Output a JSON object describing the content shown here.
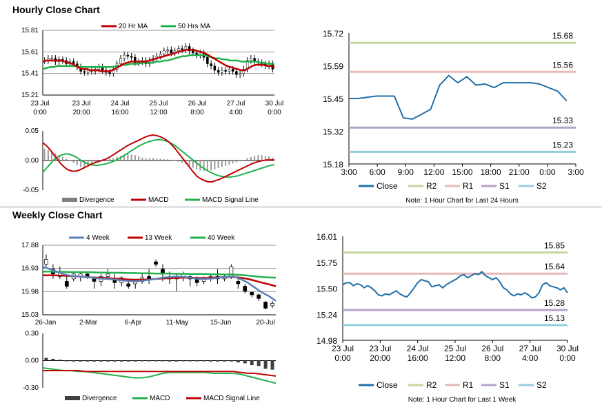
{
  "hourly": {
    "title": "Hourly Close Chart",
    "note": "Note: 1 Hour Chart for Last 24 Hours"
  },
  "weekly": {
    "title": "Weekly Close Chart",
    "note": "Note: 1 Hour Chart for Last 1 Week"
  },
  "colors": {
    "red": "#c00000",
    "green": "#21b14c",
    "blue": "#5b7fb8",
    "close": "#1f6fa6",
    "r2": "#c3d69b",
    "r1": "#e6b9b8",
    "s1": "#b3a2c7",
    "s2": "#93cddd",
    "gray": "#808080",
    "dark": "#404040"
  },
  "chart_data": [
    {
      "id": "hourly-price",
      "type": "candlestick",
      "title": "",
      "legend": [
        "20 Hr MA",
        "50 Hrs MA"
      ],
      "legend_position": "top",
      "ylim": [
        15.21,
        15.81
      ],
      "yticks": [
        "15.81",
        "15.61",
        "15.41",
        "15.21"
      ],
      "xticks": [
        [
          "23 Jul",
          "0:00"
        ],
        [
          "23 Jul",
          "20:00"
        ],
        [
          "24 Jul",
          "16:00"
        ],
        [
          "25 Jul",
          "12:00"
        ],
        [
          "26 Jul",
          "8:00"
        ],
        [
          "27 Jul",
          "4:00"
        ],
        [
          "30 Jul",
          "0:00"
        ]
      ],
      "close": [
        15.53,
        15.55,
        15.55,
        15.52,
        15.54,
        15.53,
        15.5,
        15.52,
        15.5,
        15.47,
        15.43,
        15.42,
        15.44,
        15.43,
        15.45,
        15.47,
        15.44,
        15.42,
        15.41,
        15.45,
        15.5,
        15.55,
        15.58,
        15.57,
        15.56,
        15.51,
        15.52,
        15.53,
        15.5,
        15.53,
        15.55,
        15.57,
        15.59,
        15.62,
        15.63,
        15.6,
        15.62,
        15.64,
        15.63,
        15.66,
        15.62,
        15.6,
        15.58,
        15.6,
        15.56,
        15.5,
        15.48,
        15.44,
        15.42,
        15.44,
        15.43,
        15.45,
        15.43,
        15.4,
        15.41,
        15.45,
        15.53,
        15.55,
        15.52,
        15.51,
        15.5,
        15.48,
        15.5,
        15.45
      ],
      "ma20": [
        15.52,
        15.53,
        15.53,
        15.53,
        15.53,
        15.53,
        15.52,
        15.51,
        15.5,
        15.48,
        15.46,
        15.45,
        15.45,
        15.44,
        15.44,
        15.44,
        15.43,
        15.43,
        15.43,
        15.44,
        15.46,
        15.48,
        15.5,
        15.51,
        15.52,
        15.52,
        15.52,
        15.52,
        15.52,
        15.53,
        15.54,
        15.55,
        15.56,
        15.57,
        15.58,
        15.59,
        15.6,
        15.61,
        15.62,
        15.63,
        15.63,
        15.63,
        15.62,
        15.61,
        15.6,
        15.58,
        15.56,
        15.54,
        15.52,
        15.5,
        15.48,
        15.47,
        15.46,
        15.45,
        15.44,
        15.44,
        15.46,
        15.48,
        15.49,
        15.49,
        15.49,
        15.48,
        15.48,
        15.47
      ],
      "ma50": [
        15.45,
        15.46,
        15.47,
        15.47,
        15.48,
        15.48,
        15.48,
        15.48,
        15.48,
        15.48,
        15.47,
        15.47,
        15.47,
        15.47,
        15.47,
        15.47,
        15.47,
        15.47,
        15.47,
        15.47,
        15.48,
        15.48,
        15.49,
        15.49,
        15.5,
        15.5,
        15.5,
        15.51,
        15.51,
        15.51,
        15.51,
        15.52,
        15.52,
        15.53,
        15.53,
        15.54,
        15.55,
        15.56,
        15.57,
        15.57,
        15.58,
        15.58,
        15.58,
        15.58,
        15.58,
        15.57,
        15.56,
        15.55,
        15.55,
        15.54,
        15.54,
        15.53,
        15.53,
        15.53,
        15.52,
        15.52,
        15.52,
        15.52,
        15.52,
        15.51,
        15.51,
        15.5,
        15.5,
        15.5
      ]
    },
    {
      "id": "hourly-macd",
      "type": "bar+line",
      "legend": [
        "Divergence",
        "MACD",
        "MACD Signal Line"
      ],
      "legend_position": "bottom",
      "ylim": [
        -0.05,
        0.05
      ],
      "yticks": [
        "0.05",
        "0.00",
        "-0.05"
      ],
      "divergence": [
        0.02,
        0.018,
        0.015,
        0.012,
        0.009,
        0.006,
        0.003,
        0,
        -0.004,
        -0.008,
        -0.011,
        -0.012,
        -0.01,
        -0.008,
        -0.005,
        -0.003,
        -0.001,
        0.001,
        0.003,
        0.004,
        0.006,
        0.008,
        0.01,
        0.011,
        0.01,
        0.009,
        0.007,
        0.005,
        0.004,
        0.004,
        0.004,
        0.003,
        0.003,
        0.002,
        0.002,
        0.001,
        0,
        -0.002,
        -0.004,
        -0.006,
        -0.009,
        -0.012,
        -0.015,
        -0.017,
        -0.018,
        -0.018,
        -0.017,
        -0.015,
        -0.013,
        -0.011,
        -0.009,
        -0.007,
        -0.005,
        -0.003,
        -0.001,
        0.001,
        0.004,
        0.006,
        0.008,
        0.009,
        0.009,
        0.008,
        0.007,
        0.005
      ],
      "macd": [
        0.03,
        0.025,
        0.018,
        0.01,
        0.002,
        -0.006,
        -0.012,
        -0.016,
        -0.018,
        -0.018,
        -0.016,
        -0.013,
        -0.01,
        -0.007,
        -0.004,
        -0.002,
        0,
        0.002,
        0.005,
        0.009,
        0.013,
        0.017,
        0.021,
        0.025,
        0.028,
        0.031,
        0.034,
        0.037,
        0.04,
        0.042,
        0.043,
        0.042,
        0.04,
        0.037,
        0.033,
        0.027,
        0.02,
        0.012,
        0.004,
        -0.004,
        -0.012,
        -0.02,
        -0.027,
        -0.031,
        -0.034,
        -0.036,
        -0.036,
        -0.034,
        -0.032,
        -0.029,
        -0.026,
        -0.023,
        -0.02,
        -0.017,
        -0.014,
        -0.011,
        -0.008,
        -0.005,
        -0.003,
        -0.001,
        0,
        0.001,
        0.001,
        0.001
      ],
      "signal": [
        -0.02,
        -0.013,
        -0.006,
        0.001,
        0.006,
        0.009,
        0.011,
        0.011,
        0.009,
        0.006,
        0.002,
        -0.002,
        -0.005,
        -0.007,
        -0.008,
        -0.008,
        -0.007,
        -0.006,
        -0.004,
        -0.002,
        0.001,
        0.004,
        0.008,
        0.012,
        0.016,
        0.02,
        0.024,
        0.027,
        0.03,
        0.032,
        0.034,
        0.035,
        0.035,
        0.034,
        0.032,
        0.029,
        0.025,
        0.02,
        0.015,
        0.01,
        0.005,
        0,
        -0.005,
        -0.01,
        -0.014,
        -0.018,
        -0.021,
        -0.024,
        -0.026,
        -0.027,
        -0.028,
        -0.028,
        -0.027,
        -0.026,
        -0.024,
        -0.022,
        -0.02,
        -0.018,
        -0.016,
        -0.014,
        -0.012,
        -0.01,
        -0.008,
        -0.007
      ]
    },
    {
      "id": "hourly-pivot",
      "type": "line",
      "legend": [
        "Close",
        "R2",
        "R1",
        "S1",
        "S2"
      ],
      "legend_position": "bottom",
      "ylim": [
        15.18,
        15.72
      ],
      "yticks": [
        "15.72",
        "15.59",
        "15.45",
        "15.32",
        "15.18"
      ],
      "xticks": [
        "3:00",
        "6:00",
        "9:00",
        "12:00",
        "15:00",
        "18:00",
        "21:00",
        "0:00",
        "3:00"
      ],
      "x": [
        3,
        4,
        5,
        6,
        7,
        8,
        9,
        10,
        11,
        12,
        13,
        14,
        15,
        16,
        17,
        18,
        19,
        20,
        21,
        22,
        23,
        24,
        25,
        26,
        27
      ],
      "close": [
        15.45,
        15.45,
        15.455,
        15.46,
        15.46,
        15.46,
        15.37,
        15.365,
        15.385,
        15.405,
        15.505,
        15.545,
        15.515,
        15.54,
        15.505,
        15.51,
        15.495,
        15.515,
        15.515,
        15.515,
        15.515,
        15.51,
        15.495,
        15.48,
        15.44
      ],
      "levels": [
        {
          "name": "R2",
          "value": 15.68,
          "label": "15.68"
        },
        {
          "name": "R1",
          "value": 15.56,
          "label": "15.56"
        },
        {
          "name": "S1",
          "value": 15.33,
          "label": "15.33"
        },
        {
          "name": "S2",
          "value": 15.23,
          "label": "15.23"
        }
      ]
    },
    {
      "id": "weekly-price",
      "type": "candlestick",
      "legend": [
        "4 Week",
        "13 Week",
        "40 Week"
      ],
      "legend_position": "top",
      "ylim": [
        15.03,
        17.88
      ],
      "yticks": [
        "17.88",
        "16.93",
        "15.98",
        "15.03"
      ],
      "xticks": [
        "26-Jan",
        "2-Mar",
        "6-Apr",
        "11-May",
        "15-Jun",
        "20-Jul"
      ],
      "candles": [
        {
          "o": 17.1,
          "c": 17.3,
          "h": 17.5,
          "l": 17.0
        },
        {
          "o": 16.9,
          "c": 16.7,
          "h": 17.1,
          "l": 16.5
        },
        {
          "o": 16.6,
          "c": 16.8,
          "h": 17.0,
          "l": 16.5
        },
        {
          "o": 16.4,
          "c": 16.2,
          "h": 16.6,
          "l": 16.1
        },
        {
          "o": 16.5,
          "c": 16.7,
          "h": 16.8,
          "l": 16.4
        },
        {
          "o": 16.6,
          "c": 16.7,
          "h": 16.8,
          "l": 16.4
        },
        {
          "o": 16.7,
          "c": 16.6,
          "h": 16.8,
          "l": 16.5
        },
        {
          "o": 16.5,
          "c": 16.4,
          "h": 16.6,
          "l": 16.1
        },
        {
          "o": 16.4,
          "c": 16.6,
          "h": 16.7,
          "l": 16.2
        },
        {
          "o": 16.6,
          "c": 16.7,
          "h": 16.9,
          "l": 16.5
        },
        {
          "o": 16.5,
          "c": 16.35,
          "h": 16.7,
          "l": 16.1
        },
        {
          "o": 16.35,
          "c": 16.55,
          "h": 16.6,
          "l": 16.2
        },
        {
          "o": 16.3,
          "c": 16.2,
          "h": 16.5,
          "l": 16.1
        },
        {
          "o": 16.3,
          "c": 16.45,
          "h": 16.5,
          "l": 16.1
        },
        {
          "o": 16.4,
          "c": 16.55,
          "h": 16.7,
          "l": 16.3
        },
        {
          "o": 16.6,
          "c": 16.5,
          "h": 16.9,
          "l": 16.3
        },
        {
          "o": 17.2,
          "c": 17.1,
          "h": 17.3,
          "l": 17.0
        },
        {
          "o": 16.9,
          "c": 16.7,
          "h": 17.1,
          "l": 16.4
        },
        {
          "o": 16.6,
          "c": 16.5,
          "h": 16.8,
          "l": 16.3
        },
        {
          "o": 16.5,
          "c": 16.6,
          "h": 16.7,
          "l": 16.0
        },
        {
          "o": 16.6,
          "c": 16.7,
          "h": 16.8,
          "l": 16.4
        },
        {
          "o": 16.5,
          "c": 16.6,
          "h": 16.7,
          "l": 16.2
        },
        {
          "o": 16.5,
          "c": 16.35,
          "h": 16.6,
          "l": 16.2
        },
        {
          "o": 16.4,
          "c": 16.55,
          "h": 16.6,
          "l": 16.3
        },
        {
          "o": 16.5,
          "c": 16.6,
          "h": 16.7,
          "l": 16.4
        },
        {
          "o": 16.6,
          "c": 16.5,
          "h": 16.9,
          "l": 16.3
        },
        {
          "o": 16.5,
          "c": 16.6,
          "h": 16.7,
          "l": 16.4
        },
        {
          "o": 16.6,
          "c": 17.0,
          "h": 17.1,
          "l": 16.5
        },
        {
          "o": 16.4,
          "c": 16.3,
          "h": 16.5,
          "l": 16.1
        },
        {
          "o": 16.2,
          "c": 16.0,
          "h": 16.3,
          "l": 15.9
        },
        {
          "o": 15.95,
          "c": 15.85,
          "h": 16.0,
          "l": 15.75
        },
        {
          "o": 15.85,
          "c": 15.7,
          "h": 15.9,
          "l": 15.6
        },
        {
          "o": 15.55,
          "c": 15.3,
          "h": 15.6,
          "l": 15.25
        },
        {
          "o": 15.4,
          "c": 15.5,
          "h": 15.6,
          "l": 15.3
        }
      ],
      "ma4": [
        17.0,
        16.9,
        16.8,
        16.7,
        16.62,
        16.6,
        16.58,
        16.55,
        16.52,
        16.5,
        16.48,
        16.45,
        16.42,
        16.4,
        16.42,
        16.46,
        16.5,
        16.55,
        16.58,
        16.6,
        16.58,
        16.55,
        16.5,
        16.5,
        16.52,
        16.55,
        16.58,
        16.6,
        16.5,
        16.35,
        16.15,
        15.95,
        15.8,
        15.6
      ],
      "ma13": [
        16.65,
        16.65,
        16.64,
        16.63,
        16.62,
        16.6,
        16.58,
        16.56,
        16.55,
        16.54,
        16.52,
        16.5,
        16.48,
        16.47,
        16.47,
        16.48,
        16.5,
        16.52,
        16.53,
        16.54,
        16.55,
        16.55,
        16.54,
        16.54,
        16.55,
        16.56,
        16.57,
        16.58,
        16.55,
        16.5,
        16.43,
        16.35,
        16.28,
        16.2
      ],
      "ma40": [
        16.8,
        16.8,
        16.79,
        16.79,
        16.78,
        16.78,
        16.77,
        16.77,
        16.76,
        16.76,
        16.75,
        16.75,
        16.74,
        16.74,
        16.73,
        16.73,
        16.72,
        16.72,
        16.72,
        16.71,
        16.71,
        16.7,
        16.7,
        16.7,
        16.69,
        16.69,
        16.68,
        16.68,
        16.66,
        16.64,
        16.61,
        16.58,
        16.56,
        16.55
      ]
    },
    {
      "id": "weekly-macd",
      "type": "bar+line",
      "legend": [
        "Divergence",
        "MACD",
        "MACD Signal Line"
      ],
      "legend_position": "bottom",
      "ylim": [
        -0.3,
        0.3
      ],
      "yticks": [
        "0.30",
        "0.00",
        "-0.30"
      ],
      "divergence": [
        0.03,
        0.02,
        0.01,
        0,
        -0.01,
        -0.01,
        -0.01,
        -0.01,
        -0.01,
        -0.01,
        -0.01,
        -0.01,
        -0.01,
        -0.01,
        0,
        0,
        0,
        -0.005,
        -0.01,
        -0.01,
        -0.005,
        -0.005,
        -0.005,
        -0.005,
        -0.01,
        -0.01,
        -0.01,
        -0.01,
        -0.02,
        -0.03,
        -0.05,
        -0.06,
        -0.09,
        -0.1
      ],
      "macd": [
        -0.08,
        -0.09,
        -0.1,
        -0.11,
        -0.11,
        -0.12,
        -0.12,
        -0.13,
        -0.14,
        -0.15,
        -0.16,
        -0.17,
        -0.18,
        -0.19,
        -0.19,
        -0.18,
        -0.16,
        -0.14,
        -0.13,
        -0.13,
        -0.13,
        -0.13,
        -0.13,
        -0.13,
        -0.14,
        -0.14,
        -0.14,
        -0.14,
        -0.15,
        -0.17,
        -0.19,
        -0.21,
        -0.23,
        -0.25
      ],
      "signal": [
        -0.11,
        -0.11,
        -0.11,
        -0.11,
        -0.11,
        -0.11,
        -0.12,
        -0.12,
        -0.12,
        -0.12,
        -0.12,
        -0.12,
        -0.12,
        -0.12,
        -0.12,
        -0.12,
        -0.12,
        -0.12,
        -0.12,
        -0.12,
        -0.12,
        -0.12,
        -0.12,
        -0.12,
        -0.12,
        -0.12,
        -0.12,
        -0.12,
        -0.13,
        -0.14,
        -0.14,
        -0.15,
        -0.16,
        -0.17
      ]
    },
    {
      "id": "weekly-pivot",
      "type": "line",
      "legend": [
        "Close",
        "R2",
        "R1",
        "S1",
        "S2"
      ],
      "legend_position": "bottom",
      "ylim": [
        14.98,
        16.01
      ],
      "yticks": [
        "16.01",
        "15.75",
        "15.50",
        "15.24",
        "14.98"
      ],
      "xticks": [
        [
          "23 Jul",
          "0:00"
        ],
        [
          "23 Jul",
          "20:00"
        ],
        [
          "24 Jul",
          "16:00"
        ],
        [
          "25 Jul",
          "12:00"
        ],
        [
          "26 Jul",
          "8:00"
        ],
        [
          "27 Jul",
          "4:00"
        ],
        [
          "30 Jul",
          "0:00"
        ]
      ],
      "close": [
        15.53,
        15.55,
        15.55,
        15.52,
        15.54,
        15.53,
        15.5,
        15.52,
        15.5,
        15.47,
        15.43,
        15.42,
        15.44,
        15.43,
        15.45,
        15.47,
        15.44,
        15.42,
        15.41,
        15.45,
        15.5,
        15.55,
        15.58,
        15.57,
        15.56,
        15.51,
        15.52,
        15.53,
        15.5,
        15.53,
        15.55,
        15.57,
        15.59,
        15.62,
        15.63,
        15.6,
        15.62,
        15.64,
        15.63,
        15.66,
        15.62,
        15.6,
        15.58,
        15.6,
        15.56,
        15.5,
        15.48,
        15.44,
        15.42,
        15.44,
        15.43,
        15.45,
        15.43,
        15.4,
        15.41,
        15.45,
        15.53,
        15.55,
        15.52,
        15.51,
        15.5,
        15.48,
        15.5,
        15.45
      ],
      "levels": [
        {
          "name": "R2",
          "value": 15.85,
          "label": "15.85"
        },
        {
          "name": "R1",
          "value": 15.64,
          "label": "15.64"
        },
        {
          "name": "S1",
          "value": 15.28,
          "label": "15.28"
        },
        {
          "name": "S2",
          "value": 15.13,
          "label": "15.13"
        }
      ]
    }
  ]
}
